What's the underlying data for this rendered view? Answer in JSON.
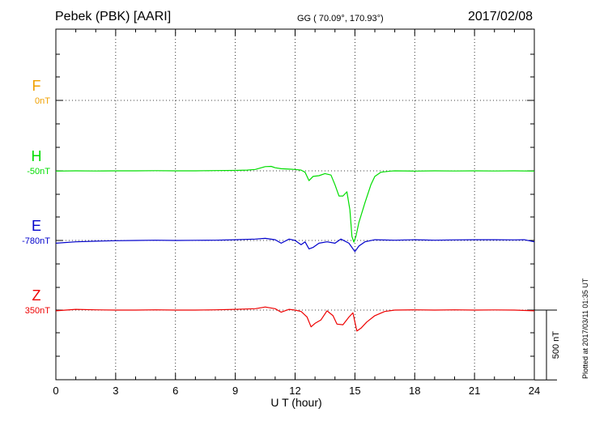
{
  "header": {
    "station": "Pebek (PBK)  [AARI]",
    "coords": "GG ( 70.09°, 170.93°)",
    "date": "2017/02/08"
  },
  "footer": {
    "plotted": "Plotted at 2017/03/11 01:35 UT"
  },
  "chart_data": {
    "type": "line",
    "title": "Pebek (PBK)  [AARI]",
    "xlabel": "U T (hour)",
    "xlim": [
      0,
      24
    ],
    "x_ticks": [
      0,
      3,
      6,
      9,
      12,
      15,
      18,
      21,
      24
    ],
    "grid": true,
    "scale_bar": {
      "label": "500 nT",
      "value_nT": 500
    },
    "series": [
      {
        "name": "F",
        "offset_label": "0nT",
        "color": "#f0a000",
        "baseline_nT": 0,
        "points": []
      },
      {
        "name": "H",
        "offset_label": "-50nT",
        "color": "#00dd00",
        "baseline_nT": -50,
        "points": [
          [
            0,
            -52
          ],
          [
            1,
            -50
          ],
          [
            2,
            -51
          ],
          [
            3,
            -50
          ],
          [
            4,
            -50
          ],
          [
            5,
            -49
          ],
          [
            6,
            -50
          ],
          [
            7,
            -50
          ],
          [
            8,
            -48
          ],
          [
            9,
            -47
          ],
          [
            9.6,
            -45
          ],
          [
            10,
            -40
          ],
          [
            10.5,
            -20
          ],
          [
            10.8,
            -18
          ],
          [
            11,
            -28
          ],
          [
            11.3,
            -35
          ],
          [
            11.7,
            -38
          ],
          [
            12,
            -40
          ],
          [
            12.3,
            -45
          ],
          [
            12.5,
            -60
          ],
          [
            12.7,
            -120
          ],
          [
            12.9,
            -90
          ],
          [
            13.2,
            -85
          ],
          [
            13.5,
            -70
          ],
          [
            13.8,
            -80
          ],
          [
            14,
            -150
          ],
          [
            14.2,
            -230
          ],
          [
            14.4,
            -230
          ],
          [
            14.6,
            -200
          ],
          [
            14.75,
            -330
          ],
          [
            14.85,
            -520
          ],
          [
            14.95,
            -560
          ],
          [
            15.05,
            -520
          ],
          [
            15.2,
            -420
          ],
          [
            15.5,
            -280
          ],
          [
            15.8,
            -150
          ],
          [
            16,
            -90
          ],
          [
            16.3,
            -60
          ],
          [
            16.8,
            -52
          ],
          [
            17,
            -50
          ],
          [
            18,
            -52
          ],
          [
            19,
            -50
          ],
          [
            20,
            -51
          ],
          [
            21,
            -50
          ],
          [
            22,
            -51
          ],
          [
            23,
            -50
          ],
          [
            24,
            -52
          ]
        ]
      },
      {
        "name": "E",
        "offset_label": "-780nT",
        "color": "#0000cc",
        "baseline_nT": -780,
        "points": [
          [
            0,
            -800
          ],
          [
            1,
            -790
          ],
          [
            2,
            -785
          ],
          [
            3,
            -782
          ],
          [
            4,
            -780
          ],
          [
            5,
            -778
          ],
          [
            6,
            -780
          ],
          [
            7,
            -779
          ],
          [
            8,
            -778
          ],
          [
            9,
            -775
          ],
          [
            10,
            -770
          ],
          [
            10.5,
            -765
          ],
          [
            11,
            -775
          ],
          [
            11.3,
            -800
          ],
          [
            11.7,
            -770
          ],
          [
            12,
            -780
          ],
          [
            12.3,
            -810
          ],
          [
            12.5,
            -790
          ],
          [
            12.7,
            -840
          ],
          [
            12.9,
            -830
          ],
          [
            13.2,
            -800
          ],
          [
            13.6,
            -790
          ],
          [
            14,
            -800
          ],
          [
            14.3,
            -770
          ],
          [
            14.7,
            -800
          ],
          [
            15,
            -860
          ],
          [
            15.2,
            -820
          ],
          [
            15.5,
            -790
          ],
          [
            16,
            -775
          ],
          [
            17,
            -778
          ],
          [
            18,
            -775
          ],
          [
            19,
            -778
          ],
          [
            20,
            -776
          ],
          [
            21,
            -775
          ],
          [
            22,
            -775
          ],
          [
            23,
            -776
          ],
          [
            23.5,
            -775
          ],
          [
            24,
            -790
          ]
        ]
      },
      {
        "name": "Z",
        "offset_label": "350nT",
        "color": "#ee0000",
        "baseline_nT": 350,
        "points": [
          [
            0,
            345
          ],
          [
            1,
            355
          ],
          [
            2,
            352
          ],
          [
            3,
            350
          ],
          [
            4,
            350
          ],
          [
            5,
            352
          ],
          [
            6,
            350
          ],
          [
            7,
            350
          ],
          [
            8,
            352
          ],
          [
            9,
            355
          ],
          [
            10,
            360
          ],
          [
            10.5,
            372
          ],
          [
            11,
            360
          ],
          [
            11.3,
            335
          ],
          [
            11.7,
            355
          ],
          [
            12,
            350
          ],
          [
            12.3,
            340
          ],
          [
            12.6,
            300
          ],
          [
            12.8,
            230
          ],
          [
            13,
            255
          ],
          [
            13.3,
            280
          ],
          [
            13.6,
            345
          ],
          [
            13.9,
            310
          ],
          [
            14.1,
            250
          ],
          [
            14.4,
            245
          ],
          [
            14.7,
            300
          ],
          [
            14.9,
            330
          ],
          [
            15.1,
            200
          ],
          [
            15.3,
            220
          ],
          [
            15.6,
            265
          ],
          [
            16,
            310
          ],
          [
            16.5,
            340
          ],
          [
            17,
            350
          ],
          [
            18,
            352
          ],
          [
            19,
            350
          ],
          [
            20,
            352
          ],
          [
            21,
            350
          ],
          [
            22,
            351
          ],
          [
            23,
            350
          ],
          [
            24,
            345
          ]
        ]
      }
    ]
  }
}
